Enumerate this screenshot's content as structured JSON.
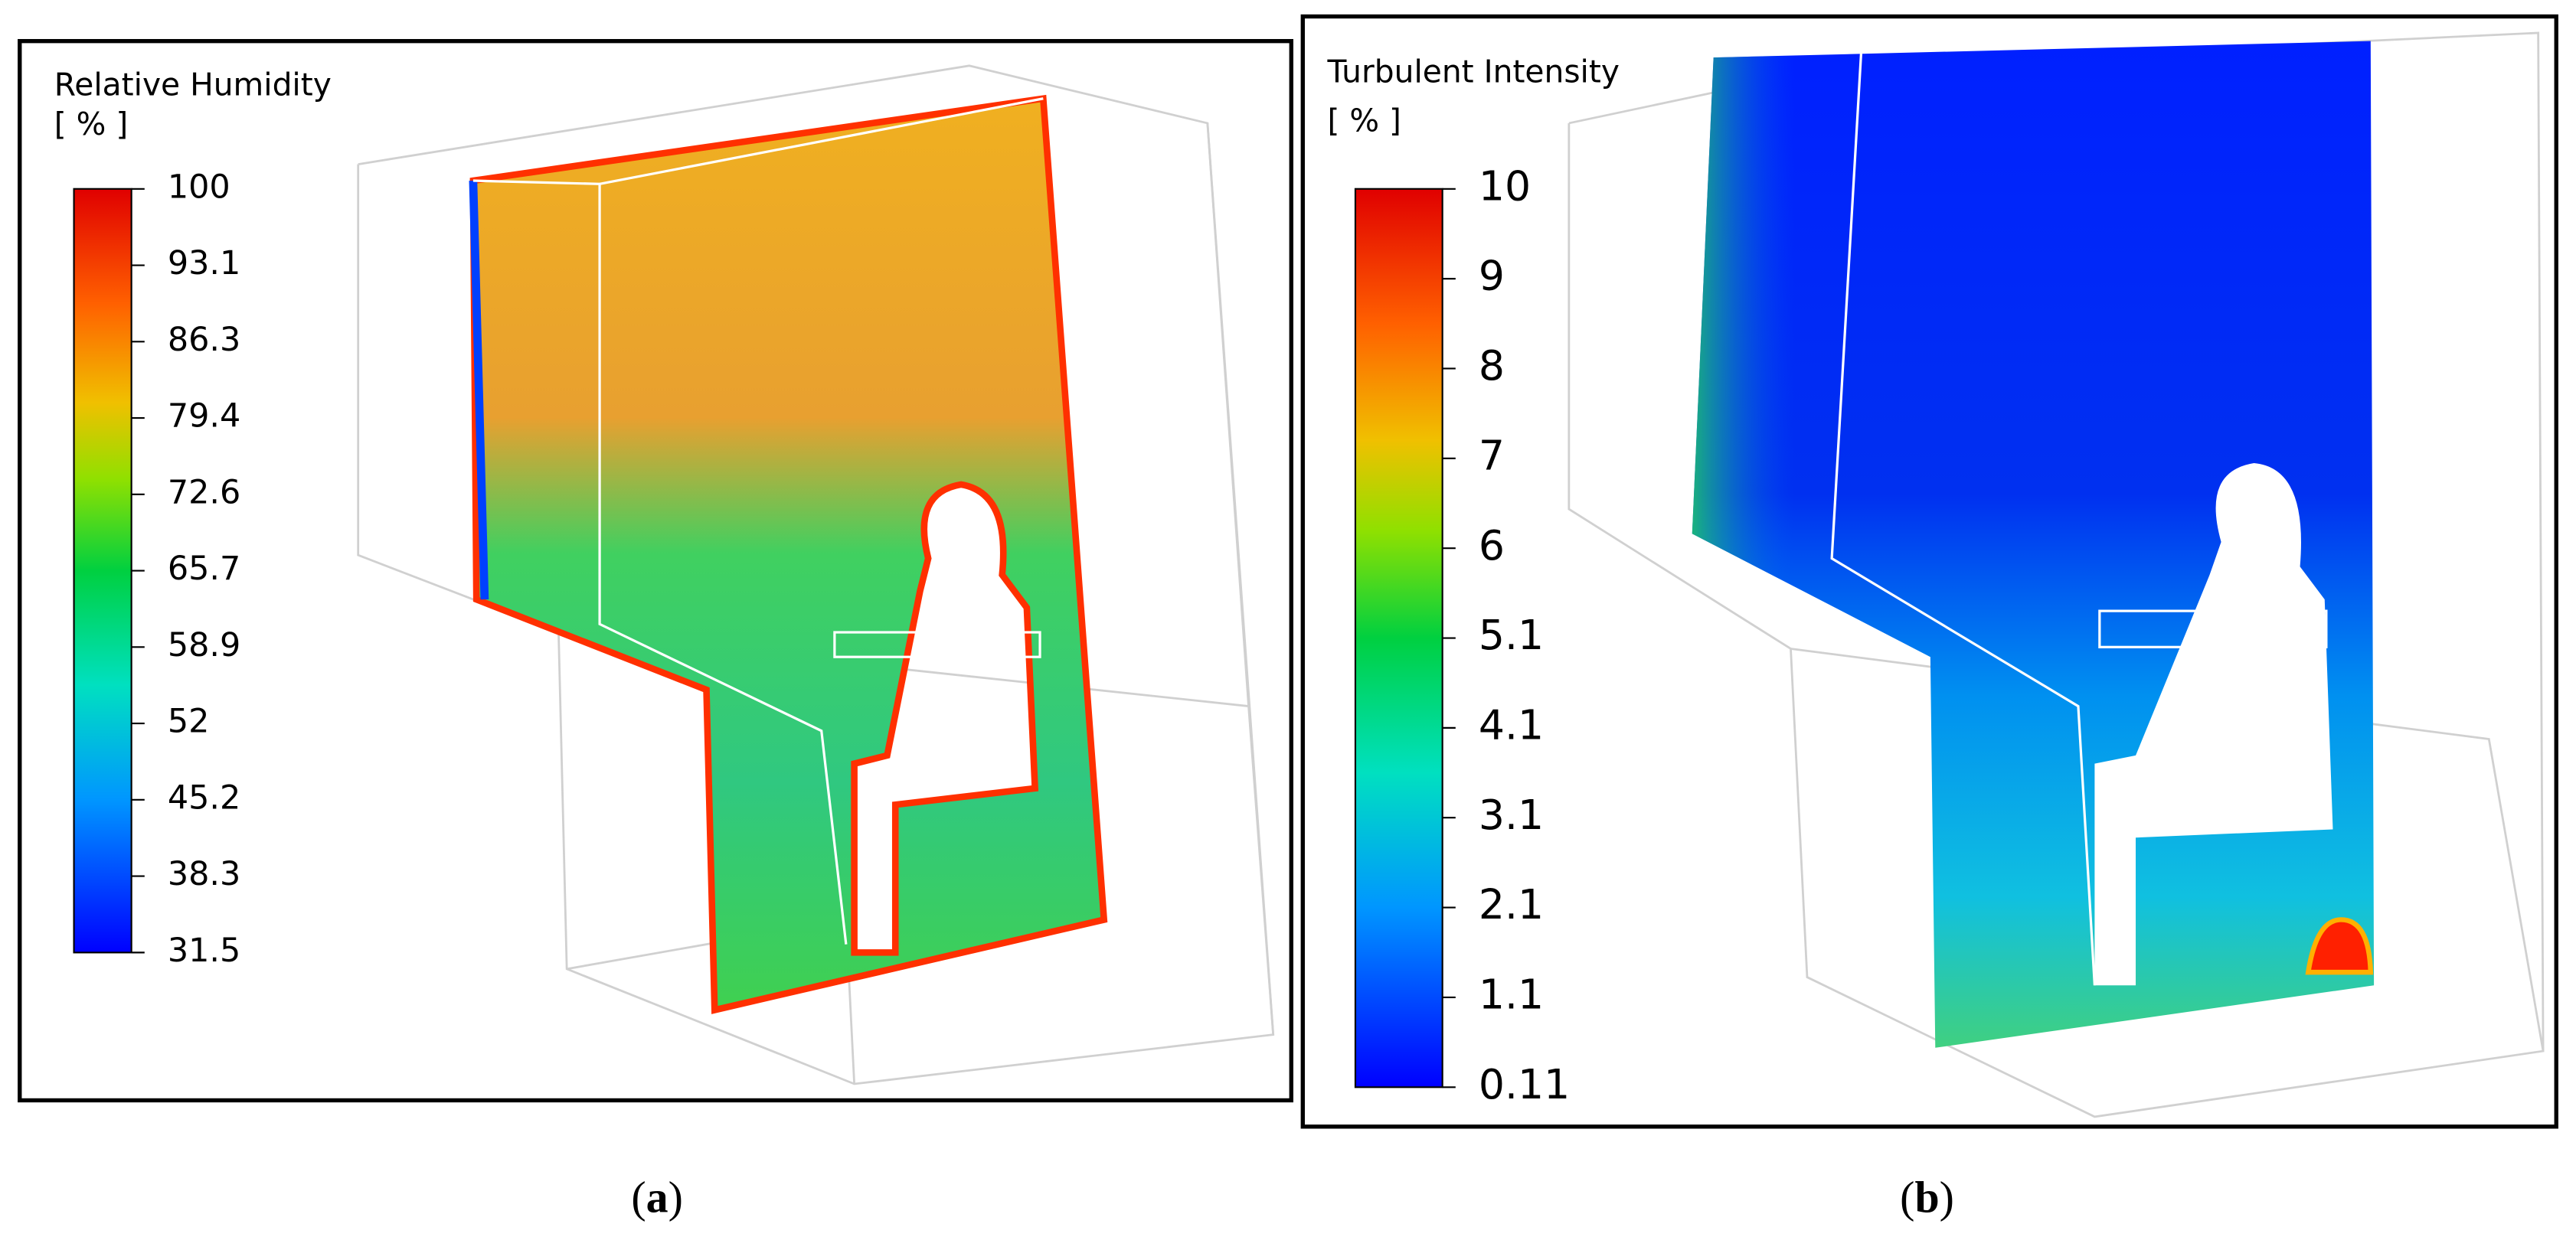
{
  "panels": [
    {
      "title": "Relative Humidity",
      "unit": "[ % ]",
      "ticks": [
        100,
        93.1,
        86.3,
        79.4,
        72.6,
        65.7,
        58.9,
        52,
        45.2,
        38.3,
        31.5
      ],
      "caption_letter": "a"
    },
    {
      "title": "Turbulent Intensity",
      "unit": "[ % ]",
      "ticks": [
        10,
        9,
        8,
        7,
        6,
        5.1,
        4.1,
        3.1,
        2.1,
        1.1,
        0.11
      ],
      "caption_letter": "b"
    }
  ]
}
